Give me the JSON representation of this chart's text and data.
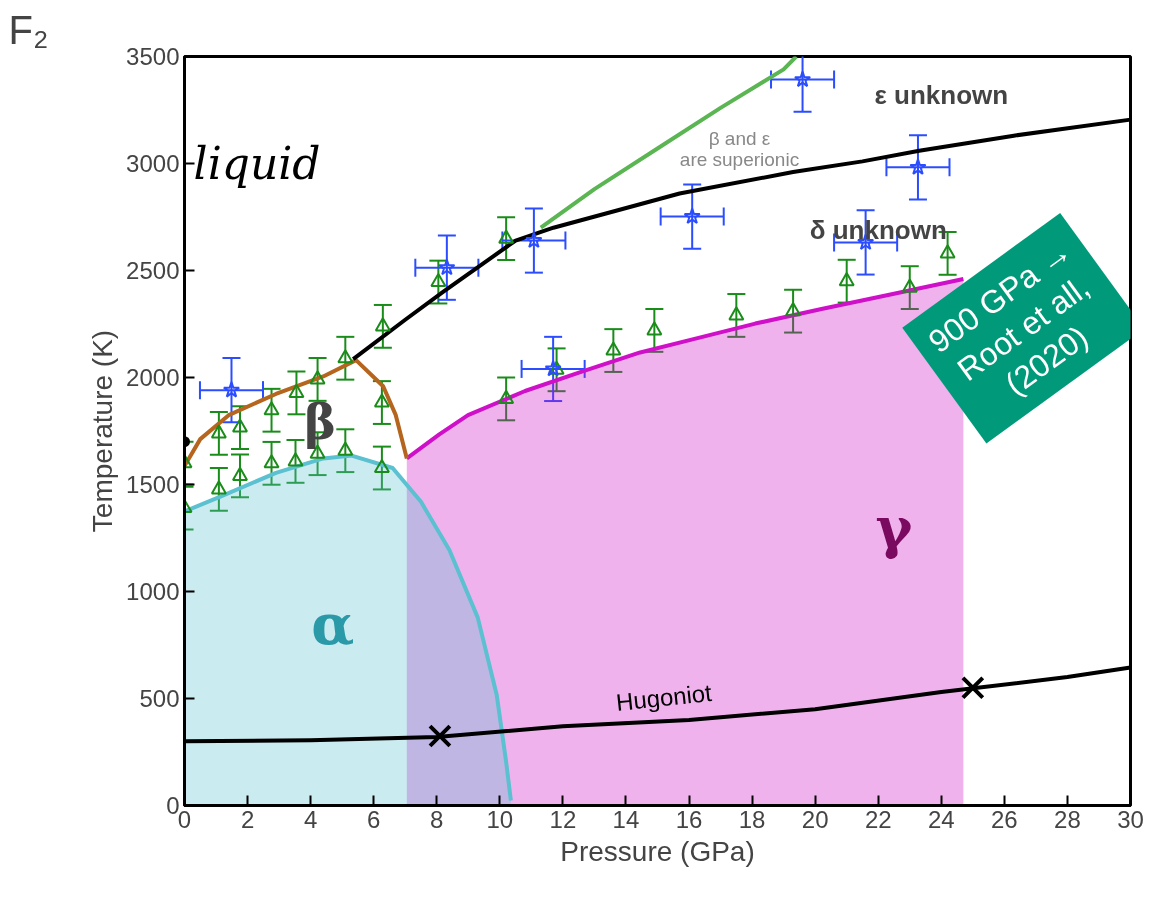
{
  "chart_data": {
    "type": "line",
    "title": "F₂",
    "xlabel": "Pressure (GPa)",
    "ylabel": "Temperature (K)",
    "xlim": [
      0,
      30
    ],
    "ylim": [
      0,
      3500
    ],
    "xticks": [
      0,
      2,
      4,
      6,
      8,
      10,
      12,
      14,
      16,
      18,
      20,
      22,
      24,
      26,
      28,
      30
    ],
    "yticks": [
      0,
      500,
      1000,
      1500,
      2000,
      2500,
      3000,
      3500
    ],
    "grid": false,
    "series": [
      {
        "type": "area",
        "color": "#d010c8",
        "x": [
          7.05,
          8.08,
          8.99,
          10.8,
          12.6,
          14.45,
          16.3,
          18.1,
          20.2,
          22.35,
          24.7
        ],
        "values": [
          1622,
          1734,
          1824,
          1937,
          2027,
          2117,
          2185,
          2252,
          2320,
          2387,
          2460
        ]
      },
      {
        "type": "area",
        "color": "#5bc0d0",
        "x": [
          0,
          1.1,
          2.9,
          4.4,
          5.3,
          6.6,
          7.5,
          8.4,
          9.3,
          9.9,
          10.2,
          10.35
        ],
        "values": [
          1374,
          1441,
          1554,
          1622,
          1635,
          1577,
          1419,
          1194,
          878,
          518,
          203,
          23
        ]
      },
      {
        "color": "#b5651d",
        "x": [
          0,
          0.5,
          1.4,
          2.9,
          4.4,
          5.44,
          6.3,
          6.7,
          7.05
        ],
        "values": [
          1586,
          1712,
          1824,
          1923,
          2005,
          2081,
          1959,
          1824,
          1622
        ]
      },
      {
        "color": "#000000",
        "x": [
          5.35,
          7.0,
          8.2,
          10.5,
          11.7,
          15.7,
          19.3,
          21.5,
          23.3,
          26.3,
          30
        ],
        "values": [
          2086,
          2270,
          2400,
          2640,
          2700,
          2860,
          2960,
          3010,
          3060,
          3130,
          3205
        ]
      },
      {
        "color": "#5ab552",
        "x": [
          11.3,
          13,
          15,
          17,
          19,
          19.4
        ],
        "values": [
          2700,
          2880,
          3070,
          3260,
          3440,
          3500
        ]
      },
      {
        "color": "#000000",
        "x": [
          0,
          4,
          8,
          12,
          16,
          20,
          24,
          28,
          30
        ],
        "values": [
          300,
          305,
          320,
          370,
          400,
          450,
          530,
          600,
          645
        ]
      },
      {
        "type": "scatter",
        "marker": "triangle",
        "color": "#1a8c1a",
        "x": [
          0,
          0,
          1.09,
          1.76,
          2.76,
          3.55,
          4.22,
          5.1,
          6.26,
          1.09,
          1.76,
          2.76,
          3.52,
          4.22,
          5.1,
          6.26,
          6.29,
          8.05,
          10.2,
          10.2,
          11.8,
          13.6,
          14.9,
          17.5,
          19.3,
          21.0,
          23.0,
          24.2
        ],
        "values": [
          1390,
          1600,
          1739,
          1766,
          1847,
          1928,
          1991,
          2090,
          1883,
          1477,
          1540,
          1599,
          1608,
          1644,
          1658,
          1577,
          2239,
          2446,
          2649,
          1900,
          2036,
          2126,
          2220,
          2290,
          2310,
          2450,
          2420,
          2580
        ],
        "errors": [
          100,
          100,
          100,
          100,
          100,
          100,
          100,
          100,
          100,
          100,
          100,
          100,
          100,
          100,
          100,
          100,
          100,
          100,
          100,
          100,
          100,
          100,
          100,
          100,
          100,
          100,
          100,
          100
        ]
      },
      {
        "type": "scatter",
        "marker": "star",
        "color": "#2b4dff",
        "x": [
          1.49,
          8.32,
          11.08,
          11.69,
          16.1,
          19.6,
          21.6,
          23.26
        ],
        "values": [
          1941,
          2513,
          2640,
          2040,
          2752,
          3392,
          2631,
          2982
        ],
        "errors": [
          150,
          150,
          150,
          150,
          150,
          150,
          150,
          150
        ],
        "xerrors": [
          1,
          1,
          1,
          1,
          1,
          1,
          1,
          1
        ]
      },
      {
        "type": "scatter",
        "marker": "cross",
        "color": "#000000",
        "x": [
          8.1,
          25
        ],
        "values": [
          325,
          550
        ]
      },
      {
        "type": "scatter",
        "marker": "circle",
        "color": "#000000",
        "x": [
          0
        ],
        "values": [
          1700
        ]
      }
    ],
    "annotations": [
      "liquid",
      "β",
      "α",
      "γ",
      "Hugoniot",
      "ε unknown",
      "δ unknown",
      "β and ε are superionic",
      "900 GPa →\nRoot et all,\n(2020)"
    ]
  }
}
